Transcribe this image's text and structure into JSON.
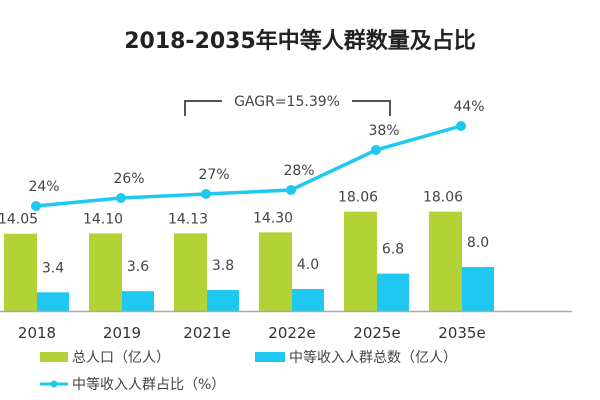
{
  "chart_data": {
    "type": "bar+line",
    "title": "2018-2035年中等人群数量及占比",
    "categories": [
      "2018",
      "2019",
      "2021e",
      "2022e",
      "2025e",
      "2035e"
    ],
    "series": [
      {
        "name": "总人口（亿人）",
        "type": "bar",
        "color": "#b2d235",
        "values": [
          14.05,
          14.1,
          14.13,
          14.3,
          18.06,
          18.06
        ],
        "labels": [
          "14.05",
          "14.10",
          "14.13",
          "14.30",
          "18.06",
          "18.06"
        ]
      },
      {
        "name": "中等收入人群总数（亿人）",
        "type": "bar",
        "color": "#1ec8f0",
        "values": [
          3.4,
          3.6,
          3.8,
          4.0,
          6.8,
          8.0
        ],
        "labels": [
          "3.4",
          "3.6",
          "3.8",
          "4.0",
          "6.8",
          "8.0"
        ]
      },
      {
        "name": "中等收入人群占比（%）",
        "type": "line",
        "color": "#1ec8f0",
        "values": [
          24,
          26,
          27,
          28,
          38,
          44
        ],
        "labels": [
          "24%",
          "26%",
          "27%",
          "28%",
          "38%",
          "44%"
        ]
      }
    ],
    "annotation": "GAGR=15.39%",
    "legend": "bottom",
    "grid": false
  }
}
